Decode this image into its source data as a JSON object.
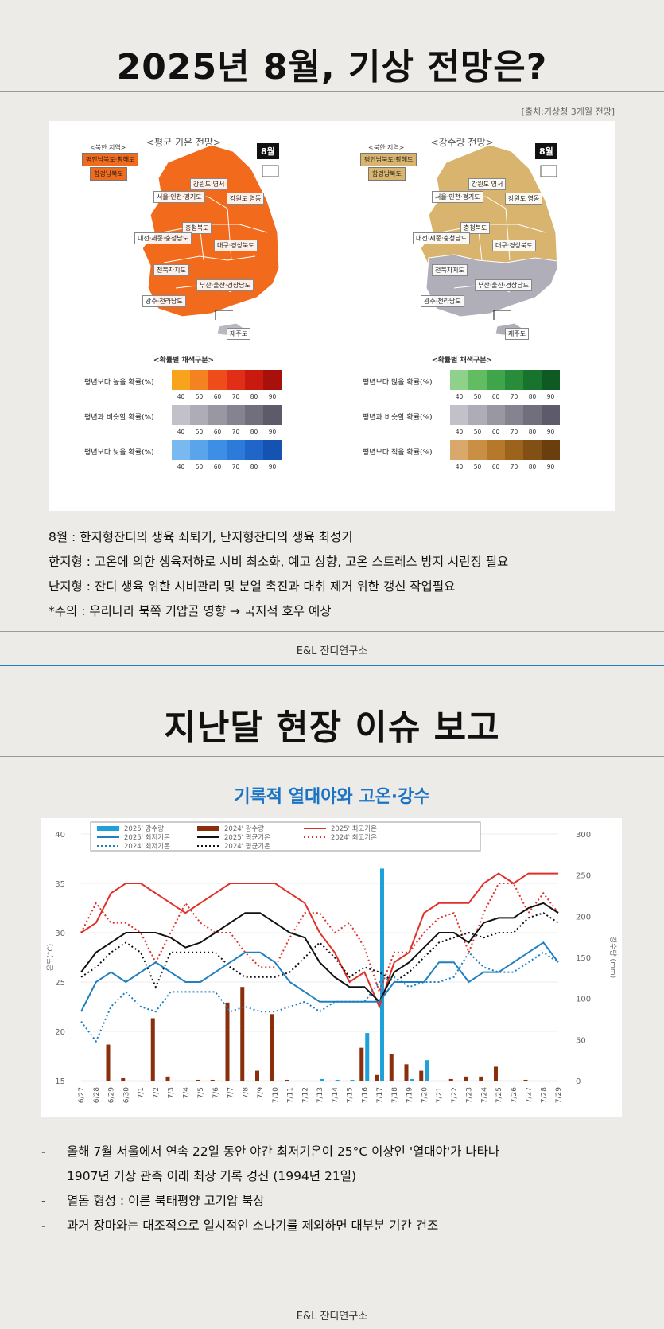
{
  "section1": {
    "title": "2025년 8월, 기상 전망은?",
    "source": "[출처:기상청 3개월 전망]",
    "temp_map": {
      "title": "<평균 기온 전망>",
      "nk_title": "<북한 지역>",
      "nk_regions": [
        "평안남북도·황해도",
        "함경남북도"
      ],
      "month": "8월",
      "regions": [
        "강원도 영서",
        "서울·인천·경기도",
        "강원도 영동",
        "충청북도",
        "대전·세종·충청남도",
        "대구·경상북도",
        "전북자치도",
        "부산·울산·경상남도",
        "광주·전라남도",
        "제주도"
      ],
      "legend_title": "<확률별 채색구분>",
      "legend_rows": [
        {
          "label": "평년보다 높을 확률(%)",
          "colors": [
            "#f7a31c",
            "#f58220",
            "#ee4d1a",
            "#e02f16",
            "#c91a10",
            "#a8100c"
          ]
        },
        {
          "label": "평년과 비슷할 확률(%)",
          "colors": [
            "#c2c0c9",
            "#aeacb6",
            "#9997a2",
            "#85838f",
            "#716f7c",
            "#5d5b69"
          ]
        },
        {
          "label": "평년보다 낮을 확률(%)",
          "colors": [
            "#7ab8f0",
            "#5aa4ec",
            "#3d8fe6",
            "#2c7ad9",
            "#1f66c8",
            "#1553b3"
          ]
        }
      ],
      "ticks": [
        "40",
        "50",
        "60",
        "70",
        "80",
        "90"
      ],
      "fill_colors": {
        "main": "#f26a1b"
      }
    },
    "rain_map": {
      "title": "<강수량 전망>",
      "nk_title": "<북한 지역>",
      "nk_regions": [
        "평안남북도·황해도",
        "함경남북도"
      ],
      "month": "8월",
      "regions": [
        "강원도 영서",
        "서울·인천·경기도",
        "강원도 영동",
        "충청북도",
        "대전·세종·충청남도",
        "대구·경상북도",
        "전북자치도",
        "부산·울산·경상남도",
        "광주·전라남도",
        "제주도"
      ],
      "legend_title": "<확률별 채색구분>",
      "legend_rows": [
        {
          "label": "평년보다 많을 확률(%)",
          "colors": [
            "#8fd18a",
            "#62bd62",
            "#3fa54a",
            "#288c3a",
            "#18732d",
            "#0e5a22"
          ]
        },
        {
          "label": "평년과 비슷할 확률(%)",
          "colors": [
            "#c2c0c9",
            "#aeacb6",
            "#9997a2",
            "#85838f",
            "#716f7c",
            "#5d5b69"
          ]
        },
        {
          "label": "평년보다 적을 확률(%)",
          "colors": [
            "#d9a96b",
            "#c98f45",
            "#b6792c",
            "#9c631d",
            "#824f14",
            "#6a3e0d"
          ]
        }
      ],
      "ticks": [
        "40",
        "50",
        "60",
        "70",
        "80",
        "90"
      ],
      "fill_colors": {
        "main": "#d8b46e",
        "south": "#b0aeb8"
      }
    },
    "notes": [
      "8월 : 한지형잔디의 생육 쇠퇴기, 난지형잔디의 생육 최성기",
      "한지형 : 고온에 의한 생육저하로 시비 최소화, 예고 상향, 고온 스트레스 방지 시린징 필요",
      "난지형 : 잔디 생육 위한 시비관리 및 분얼 촉진과 대취 제거 위한 갱신 작업필요",
      "*주의 : 우리나라 북쪽 기압골 영향 → 국지적 호우 예상"
    ],
    "footer": "E&L 잔디연구소"
  },
  "section2": {
    "title": "지난달 현장 이슈 보고",
    "subtitle": "기록적 열대야와 고온·강수",
    "bullets": [
      {
        "dash": "-",
        "text": "올해 7월 서울에서 연속 22일 동안 야간 최저기온이 25°C 이상인 '열대야'가 나타나"
      },
      {
        "dash": "",
        "text": "1907년 기상 관측 이래 최장 기록 경신 (1994년 21일)"
      },
      {
        "dash": "-",
        "text": "열돔 형성 : 이른 북태평양 고기압 북상"
      },
      {
        "dash": "-",
        "text": "과거 장마와는 대조적으로 일시적인 소나기를 제외하면 대부분 기간 건조"
      }
    ],
    "footer": "E&L 잔디연구소"
  },
  "chart_data": {
    "type": "line",
    "title": "기록적 열대야와 고온·강수",
    "x": [
      "6/27",
      "6/28",
      "6/29",
      "6/30",
      "7/1",
      "7/2",
      "7/3",
      "7/4",
      "7/5",
      "7/6",
      "7/7",
      "7/8",
      "7/9",
      "7/10",
      "7/11",
      "7/12",
      "7/13",
      "7/14",
      "7/15",
      "7/16",
      "7/17",
      "7/18",
      "7/19",
      "7/20",
      "7/21",
      "7/22",
      "7/23",
      "7/24",
      "7/25",
      "7/26",
      "7/27",
      "7/28",
      "7/29"
    ],
    "ylabel": "온도(°C)",
    "y2label": "강수량 (mm)",
    "ylim": [
      15,
      40
    ],
    "y2lim": [
      0,
      300
    ],
    "yticks": [
      15,
      20,
      25,
      30,
      35,
      40
    ],
    "y2ticks": [
      0,
      50,
      100,
      150,
      200,
      250,
      300
    ],
    "series": [
      {
        "name": "2025' 최고기온",
        "type": "line",
        "axis": "left",
        "color": "#e0302a",
        "dash": false,
        "values": [
          30,
          31,
          34,
          35,
          35,
          34,
          33,
          32,
          33,
          34,
          35,
          35,
          35,
          35,
          34,
          33,
          30,
          28,
          25,
          26,
          22.5,
          27,
          28,
          32,
          33,
          33,
          33,
          35,
          36,
          35,
          36,
          36,
          36
        ]
      },
      {
        "name": "2024' 최고기온",
        "type": "line",
        "axis": "left",
        "color": "#e0302a",
        "dash": true,
        "values": [
          30,
          33,
          31,
          31,
          30,
          27,
          30,
          33,
          31,
          30,
          30,
          28,
          26.5,
          26.5,
          29.5,
          32,
          32,
          30,
          31,
          28.5,
          24,
          28,
          28,
          30,
          31.5,
          32,
          28,
          32,
          35,
          35,
          32,
          34,
          32
        ]
      },
      {
        "name": "2025' 평균기온",
        "type": "line",
        "axis": "left",
        "color": "#111111",
        "dash": false,
        "values": [
          26,
          28,
          29,
          30,
          30,
          30,
          29.5,
          28.5,
          29,
          30,
          31,
          32,
          32,
          31,
          30,
          29.5,
          27,
          25.5,
          24.5,
          24.5,
          23,
          26,
          27,
          28.5,
          30,
          30,
          29,
          31,
          31.5,
          31.5,
          32.5,
          33,
          32
        ]
      },
      {
        "name": "2024' 평균기온",
        "type": "line",
        "axis": "left",
        "color": "#111111",
        "dash": true,
        "values": [
          25.5,
          26.5,
          28,
          29,
          28,
          24.5,
          28,
          28,
          28,
          28,
          26.5,
          25.5,
          25.5,
          25.5,
          26,
          27.5,
          29,
          27.5,
          25.5,
          26.5,
          26,
          25,
          26,
          27.5,
          29,
          29.5,
          30,
          29.5,
          30,
          30,
          31.5,
          32,
          31
        ]
      },
      {
        "name": "2025' 최저기온",
        "type": "line",
        "axis": "left",
        "color": "#1f7fc1",
        "dash": false,
        "values": [
          22,
          25,
          26,
          25,
          26,
          27,
          26,
          25,
          25,
          26,
          27,
          28,
          28,
          27,
          25,
          24,
          23,
          23,
          23,
          23,
          23,
          25,
          25,
          25,
          27,
          27,
          25,
          26,
          26,
          27,
          28,
          29,
          27
        ]
      },
      {
        "name": "2024' 최저기온",
        "type": "line",
        "axis": "left",
        "color": "#1f7fc1",
        "dash": true,
        "values": [
          21,
          19,
          22.5,
          24,
          22.5,
          22,
          24,
          24,
          24,
          24,
          22,
          22.5,
          22,
          22,
          22.5,
          23,
          22,
          23,
          23,
          23,
          25,
          25.5,
          24.5,
          25,
          25,
          25.5,
          28,
          26.5,
          26,
          26,
          27,
          28,
          27
        ]
      },
      {
        "name": "2025' 강수량",
        "type": "bar",
        "axis": "right",
        "color": "#1ea1d8",
        "values": [
          0,
          0,
          0,
          0,
          0,
          0,
          0,
          0,
          0,
          0,
          0,
          0,
          0,
          0,
          0,
          0,
          2,
          1,
          1,
          58,
          258,
          0,
          2,
          25,
          0,
          0,
          0,
          0,
          0,
          0,
          0,
          0,
          0
        ]
      },
      {
        "name": "2024' 강수량",
        "type": "bar",
        "axis": "right",
        "color": "#8b2e0c",
        "values": [
          0,
          0,
          44,
          3,
          0,
          76,
          5,
          0,
          1,
          1,
          95,
          114,
          12,
          81,
          1,
          0,
          0,
          0,
          0,
          40,
          7,
          32,
          20,
          12,
          0,
          2,
          5,
          5,
          17,
          0,
          1,
          0,
          0
        ]
      }
    ],
    "legend_placement": "top",
    "grid": true
  }
}
